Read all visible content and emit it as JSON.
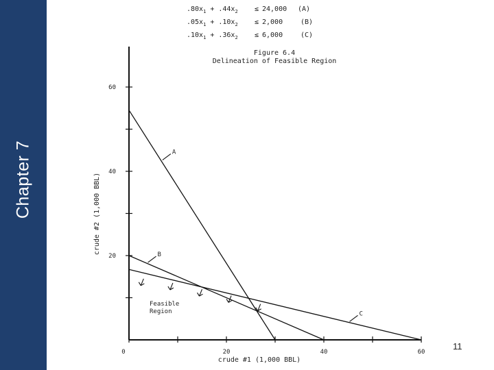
{
  "sidebar": {
    "title": "Chapter 7",
    "color": "#1f3f6e"
  },
  "page_number": "11",
  "chart_data": {
    "type": "line",
    "constraints": [
      {
        "label": ".80x",
        "sub1": "1",
        "mid": " + .44x",
        "sub2": "2",
        "rel": "≤",
        "rhs": "24,000",
        "tag": "(A)"
      },
      {
        "label": ".05x",
        "sub1": "1",
        "mid": " + .10x",
        "sub2": "2",
        "rel": "≤",
        "rhs": "2,000",
        "tag": "(B)"
      },
      {
        "label": ".10x",
        "sub1": "1",
        "mid": " + .36x",
        "sub2": "2",
        "rel": "≤",
        "rhs": "6,000",
        "tag": "(C)"
      }
    ],
    "figure_label": "Figure 6.4",
    "title": "Delineation of Feasible Region",
    "xlabel": "crude #1 (1,000 BBL)",
    "ylabel": "crude #2 (1,000 BBL)",
    "xlim": [
      0,
      60
    ],
    "ylim": [
      0,
      60
    ],
    "xticks": [
      0,
      20,
      40,
      60
    ],
    "yticks": [
      20,
      40,
      60
    ],
    "series": [
      {
        "name": "A",
        "x": [
          0,
          30
        ],
        "y": [
          54.5,
          0
        ]
      },
      {
        "name": "B",
        "x": [
          0,
          40
        ],
        "y": [
          20,
          0
        ]
      },
      {
        "name": "C",
        "x": [
          0,
          60
        ],
        "y": [
          16.7,
          0
        ]
      }
    ],
    "region_label": [
      "Feasible",
      "Region"
    ]
  }
}
